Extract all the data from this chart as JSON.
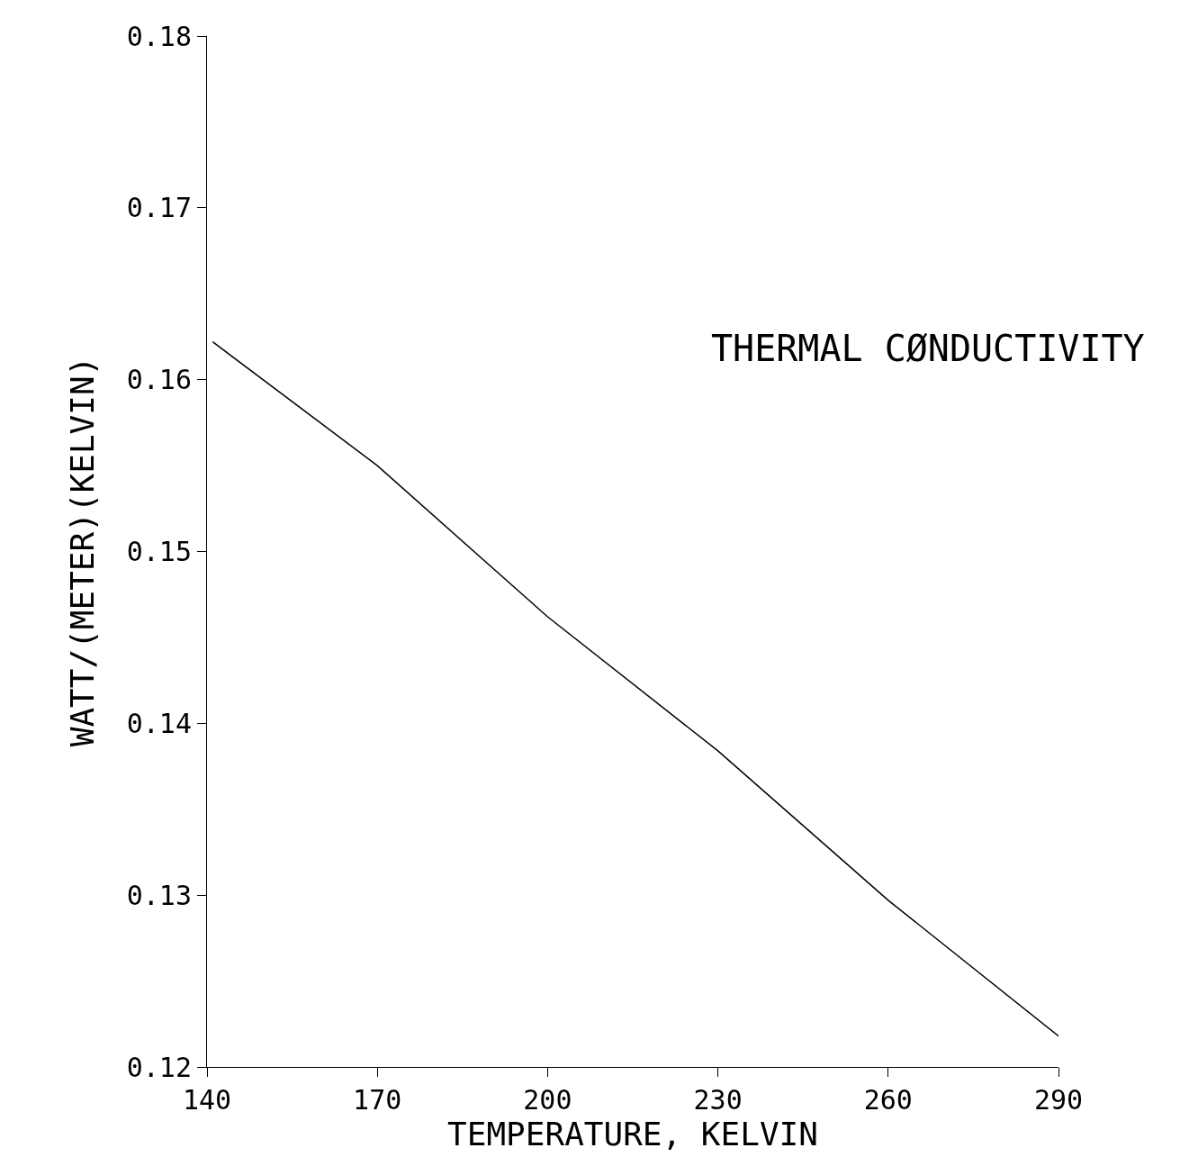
{
  "chart_data": {
    "type": "line",
    "title": "THERMAL CØNDUCTIVITY",
    "xlabel": "TEMPERATURE, KELVIN",
    "ylabel": "WATT/(METER)(KELVIN)",
    "x": [
      141,
      170,
      200,
      230,
      260,
      290
    ],
    "series": [
      {
        "color": "#000000",
        "values": [
          0.1622,
          0.155,
          0.1462,
          0.1384,
          0.1297,
          0.1218
        ]
      }
    ],
    "xlim": [
      140,
      290
    ],
    "xticks": [
      140,
      170,
      200,
      230,
      260,
      290
    ],
    "ylim": [
      0.12,
      0.18
    ],
    "yticks": [
      {
        "value": 0.12,
        "label": "0.12"
      },
      {
        "value": 0.13,
        "label": "0.13"
      },
      {
        "value": 0.14,
        "label": "0.14"
      },
      {
        "value": 0.15,
        "label": "0.15"
      },
      {
        "value": 0.16,
        "label": "0.16"
      },
      {
        "value": 0.17,
        "label": "0.17"
      },
      {
        "value": 0.18,
        "label": "0.18"
      }
    ],
    "grid": false,
    "legend": false,
    "marker": "none",
    "line_style": "solid"
  }
}
